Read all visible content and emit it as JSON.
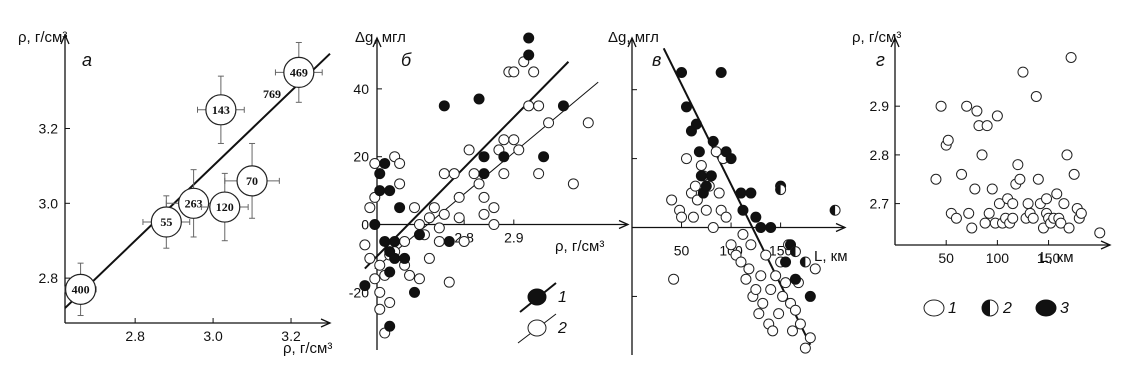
{
  "chart_data": [
    {
      "panel": "а",
      "type": "scatter",
      "xlabel": "ρ, г/см³",
      "ylabel": "ρ, г/см³",
      "xlim": [
        2.62,
        3.3
      ],
      "ylim": [
        2.68,
        3.45
      ],
      "xticks": [
        {
          "v": 2.8,
          "t": "2.8"
        },
        {
          "v": 3.0,
          "t": "3.0"
        },
        {
          "v": 3.2,
          "t": "3.2"
        }
      ],
      "yticks": [
        {
          "v": 2.8,
          "t": "2.8"
        },
        {
          "v": 3.0,
          "t": "3.0"
        },
        {
          "v": 3.2,
          "t": "3.2"
        }
      ],
      "points": [
        {
          "label": "400",
          "x": 2.66,
          "y": 2.77,
          "ex": 0.04,
          "ey": 0.07
        },
        {
          "label": "55",
          "x": 2.88,
          "y": 2.95,
          "ex": 0.06,
          "ey": 0.07
        },
        {
          "label": "263",
          "x": 2.95,
          "y": 3.0,
          "ex": 0.07,
          "ey": 0.09
        },
        {
          "label": "120",
          "x": 3.03,
          "y": 2.99,
          "ex": 0.06,
          "ey": 0.09
        },
        {
          "label": "70",
          "x": 3.1,
          "y": 3.06,
          "ex": 0.07,
          "ey": 0.1
        },
        {
          "label": "143",
          "x": 3.02,
          "y": 3.25,
          "ex": 0.06,
          "ey": 0.09
        },
        {
          "label": "469",
          "x": 3.22,
          "y": 3.35,
          "ex": 0.06,
          "ey": 0.08
        }
      ],
      "extra_label": "769",
      "fit": [
        [
          2.62,
          2.72
        ],
        [
          3.3,
          3.4
        ]
      ]
    },
    {
      "panel": "б",
      "type": "scatter",
      "xlabel": "ρ, г/см³",
      "ylabel": "Δg, мгл",
      "xlim": [
        2.56,
        3.13
      ],
      "ylim": [
        -37,
        55
      ],
      "xticks": [
        {
          "v": 2.8,
          "t": "2.8"
        },
        {
          "v": 2.9,
          "t": "2.9"
        }
      ],
      "yticks": [
        {
          "v": -20,
          "t": "-20"
        },
        {
          "v": 0,
          "t": "0"
        },
        {
          "v": 20,
          "t": "20"
        },
        {
          "v": 40,
          "t": "40"
        }
      ],
      "open_points": [
        [
          2.61,
          5
        ],
        [
          2.62,
          8
        ],
        [
          2.6,
          -6
        ],
        [
          2.61,
          -10
        ],
        [
          2.62,
          18
        ],
        [
          2.63,
          -12
        ],
        [
          2.62,
          -16
        ],
        [
          2.63,
          -20
        ],
        [
          2.64,
          -15
        ],
        [
          2.63,
          -25
        ],
        [
          2.64,
          -32
        ],
        [
          2.65,
          -23
        ],
        [
          2.65,
          -9
        ],
        [
          2.66,
          -8
        ],
        [
          2.66,
          20
        ],
        [
          2.67,
          18
        ],
        [
          2.67,
          12
        ],
        [
          2.68,
          -5
        ],
        [
          2.68,
          -12
        ],
        [
          2.69,
          -15
        ],
        [
          2.7,
          5
        ],
        [
          2.71,
          0
        ],
        [
          2.71,
          -16
        ],
        [
          2.72,
          -3
        ],
        [
          2.73,
          2
        ],
        [
          2.73,
          -10
        ],
        [
          2.74,
          5
        ],
        [
          2.75,
          -1
        ],
        [
          2.75,
          -5
        ],
        [
          2.76,
          3
        ],
        [
          2.77,
          -17
        ],
        [
          2.76,
          15
        ],
        [
          2.78,
          15
        ],
        [
          2.79,
          8
        ],
        [
          2.79,
          2
        ],
        [
          2.8,
          -5
        ],
        [
          2.81,
          22
        ],
        [
          2.82,
          15
        ],
        [
          2.83,
          12
        ],
        [
          2.84,
          8
        ],
        [
          2.84,
          3
        ],
        [
          2.86,
          0
        ],
        [
          2.86,
          5
        ],
        [
          2.87,
          22
        ],
        [
          2.88,
          25
        ],
        [
          2.88,
          15
        ],
        [
          2.89,
          45
        ],
        [
          2.9,
          45
        ],
        [
          2.9,
          25
        ],
        [
          2.91,
          22
        ],
        [
          2.92,
          48
        ],
        [
          2.93,
          35
        ],
        [
          2.94,
          45
        ],
        [
          2.95,
          35
        ],
        [
          2.95,
          15
        ],
        [
          2.97,
          30
        ],
        [
          3.02,
          12
        ],
        [
          3.05,
          30
        ]
      ],
      "filled_points": [
        [
          2.6,
          -18
        ],
        [
          2.62,
          0
        ],
        [
          2.63,
          15
        ],
        [
          2.63,
          10
        ],
        [
          2.64,
          18
        ],
        [
          2.64,
          -5
        ],
        [
          2.65,
          -8
        ],
        [
          2.65,
          -14
        ],
        [
          2.65,
          -30
        ],
        [
          2.66,
          -5
        ],
        [
          2.66,
          -10
        ],
        [
          2.65,
          10
        ],
        [
          2.67,
          5
        ],
        [
          2.68,
          -10
        ],
        [
          2.7,
          -20
        ],
        [
          2.71,
          -3
        ],
        [
          2.76,
          35
        ],
        [
          2.77,
          -5
        ],
        [
          2.83,
          37
        ],
        [
          2.84,
          20
        ],
        [
          2.84,
          15
        ],
        [
          2.88,
          20
        ],
        [
          2.93,
          50
        ],
        [
          2.93,
          55
        ],
        [
          2.96,
          20
        ],
        [
          3.0,
          35
        ]
      ],
      "legend": [
        {
          "label": "1",
          "style": "filled"
        },
        {
          "label": "2",
          "style": "open"
        }
      ],
      "fit_thick": [
        [
          2.6,
          -13
        ],
        [
          3.01,
          48
        ]
      ],
      "fit_thin": [
        [
          2.62,
          -13
        ],
        [
          3.07,
          42
        ]
      ]
    },
    {
      "panel": "в",
      "type": "scatter",
      "xlabel": "L, км",
      "ylabel": "Δg, мгл",
      "xlim": [
        0,
        215
      ],
      "ylim": [
        -37,
        55
      ],
      "xticks": [
        {
          "v": 50,
          "t": "50"
        },
        {
          "v": 100,
          "t": "100"
        },
        {
          "v": 150,
          "t": "150"
        }
      ],
      "yticks": [],
      "open_points": [
        [
          40,
          8
        ],
        [
          42,
          -15
        ],
        [
          48,
          5
        ],
        [
          50,
          3
        ],
        [
          55,
          20
        ],
        [
          60,
          10
        ],
        [
          62,
          3
        ],
        [
          64,
          12
        ],
        [
          66,
          8
        ],
        [
          70,
          18
        ],
        [
          72,
          15
        ],
        [
          75,
          5
        ],
        [
          78,
          12
        ],
        [
          80,
          15
        ],
        [
          82,
          0
        ],
        [
          85,
          22
        ],
        [
          88,
          10
        ],
        [
          90,
          5
        ],
        [
          92,
          20
        ],
        [
          95,
          3
        ],
        [
          100,
          -5
        ],
        [
          105,
          -8
        ],
        [
          110,
          -10
        ],
        [
          112,
          -2
        ],
        [
          115,
          -15
        ],
        [
          118,
          -12
        ],
        [
          120,
          -5
        ],
        [
          122,
          -20
        ],
        [
          125,
          -18
        ],
        [
          128,
          -25
        ],
        [
          130,
          -14
        ],
        [
          132,
          -22
        ],
        [
          135,
          -8
        ],
        [
          138,
          -28
        ],
        [
          140,
          -18
        ],
        [
          142,
          -30
        ],
        [
          145,
          -14
        ],
        [
          148,
          -25
        ],
        [
          150,
          -10
        ],
        [
          152,
          -20
        ],
        [
          155,
          -16
        ],
        [
          158,
          -5
        ],
        [
          160,
          -22
        ],
        [
          162,
          -30
        ],
        [
          165,
          -24
        ],
        [
          168,
          -16
        ],
        [
          170,
          -28
        ],
        [
          175,
          -35
        ],
        [
          180,
          -32
        ],
        [
          185,
          -12
        ]
      ],
      "filled_points": [
        [
          50,
          45
        ],
        [
          55,
          35
        ],
        [
          60,
          28
        ],
        [
          65,
          30
        ],
        [
          68,
          22
        ],
        [
          70,
          15
        ],
        [
          72,
          10
        ],
        [
          75,
          12
        ],
        [
          80,
          15
        ],
        [
          82,
          25
        ],
        [
          90,
          45
        ],
        [
          95,
          22
        ],
        [
          100,
          20
        ],
        [
          110,
          10
        ],
        [
          112,
          5
        ],
        [
          120,
          10
        ],
        [
          125,
          3
        ],
        [
          130,
          0
        ],
        [
          140,
          0
        ],
        [
          150,
          12
        ],
        [
          155,
          -10
        ],
        [
          160,
          -5
        ],
        [
          165,
          -15
        ],
        [
          180,
          -20
        ]
      ],
      "half_points": [
        [
          150,
          11
        ],
        [
          165,
          -7
        ],
        [
          175,
          -10
        ],
        [
          205,
          5
        ]
      ],
      "fit": [
        [
          32,
          52
        ],
        [
          180,
          -34
        ]
      ]
    },
    {
      "panel": "г",
      "type": "scatter",
      "xlabel": "L, км",
      "ylabel": "ρ, г/см³",
      "xlim": [
        0,
        210
      ],
      "ylim": [
        2.615,
        3.04
      ],
      "xticks": [
        {
          "v": 50,
          "t": "50"
        },
        {
          "v": 100,
          "t": "100"
        },
        {
          "v": 150,
          "t": "150"
        }
      ],
      "yticks": [
        {
          "v": 2.7,
          "t": "2.7"
        },
        {
          "v": 2.8,
          "t": "2.8"
        },
        {
          "v": 2.9,
          "t": "2.9"
        }
      ],
      "open_points": [
        [
          40,
          2.75
        ],
        [
          45,
          2.9
        ],
        [
          50,
          2.82
        ],
        [
          52,
          2.83
        ],
        [
          55,
          2.68
        ],
        [
          60,
          2.67
        ],
        [
          65,
          2.76
        ],
        [
          70,
          2.9
        ],
        [
          72,
          2.68
        ],
        [
          75,
          2.65
        ],
        [
          78,
          2.73
        ],
        [
          80,
          2.89
        ],
        [
          82,
          2.86
        ],
        [
          85,
          2.8
        ],
        [
          88,
          2.66
        ],
        [
          90,
          2.86
        ],
        [
          92,
          2.68
        ],
        [
          95,
          2.73
        ],
        [
          98,
          2.66
        ],
        [
          100,
          2.88
        ],
        [
          102,
          2.7
        ],
        [
          105,
          2.66
        ],
        [
          108,
          2.67
        ],
        [
          110,
          2.71
        ],
        [
          112,
          2.66
        ],
        [
          115,
          2.67
        ],
        [
          118,
          2.74
        ],
        [
          120,
          2.78
        ],
        [
          122,
          2.75
        ],
        [
          125,
          2.97
        ],
        [
          128,
          2.67
        ],
        [
          130,
          2.7
        ],
        [
          132,
          2.68
        ],
        [
          135,
          2.67
        ],
        [
          138,
          2.92
        ],
        [
          140,
          2.75
        ],
        [
          142,
          2.7
        ],
        [
          145,
          2.65
        ],
        [
          148,
          2.68
        ],
        [
          150,
          2.67
        ],
        [
          152,
          2.66
        ],
        [
          155,
          2.67
        ],
        [
          158,
          2.72
        ],
        [
          160,
          2.67
        ],
        [
          162,
          2.66
        ],
        [
          165,
          2.7
        ],
        [
          168,
          2.8
        ],
        [
          170,
          2.65
        ],
        [
          172,
          3.0
        ],
        [
          175,
          2.76
        ],
        [
          178,
          2.69
        ],
        [
          180,
          2.67
        ],
        [
          182,
          2.68
        ],
        [
          200,
          2.64
        ],
        [
          115,
          2.7
        ],
        [
          148,
          2.71
        ]
      ],
      "legend": [
        {
          "label": "1",
          "style": "open"
        },
        {
          "label": "2",
          "style": "half"
        },
        {
          "label": "3",
          "style": "filled"
        }
      ]
    }
  ]
}
